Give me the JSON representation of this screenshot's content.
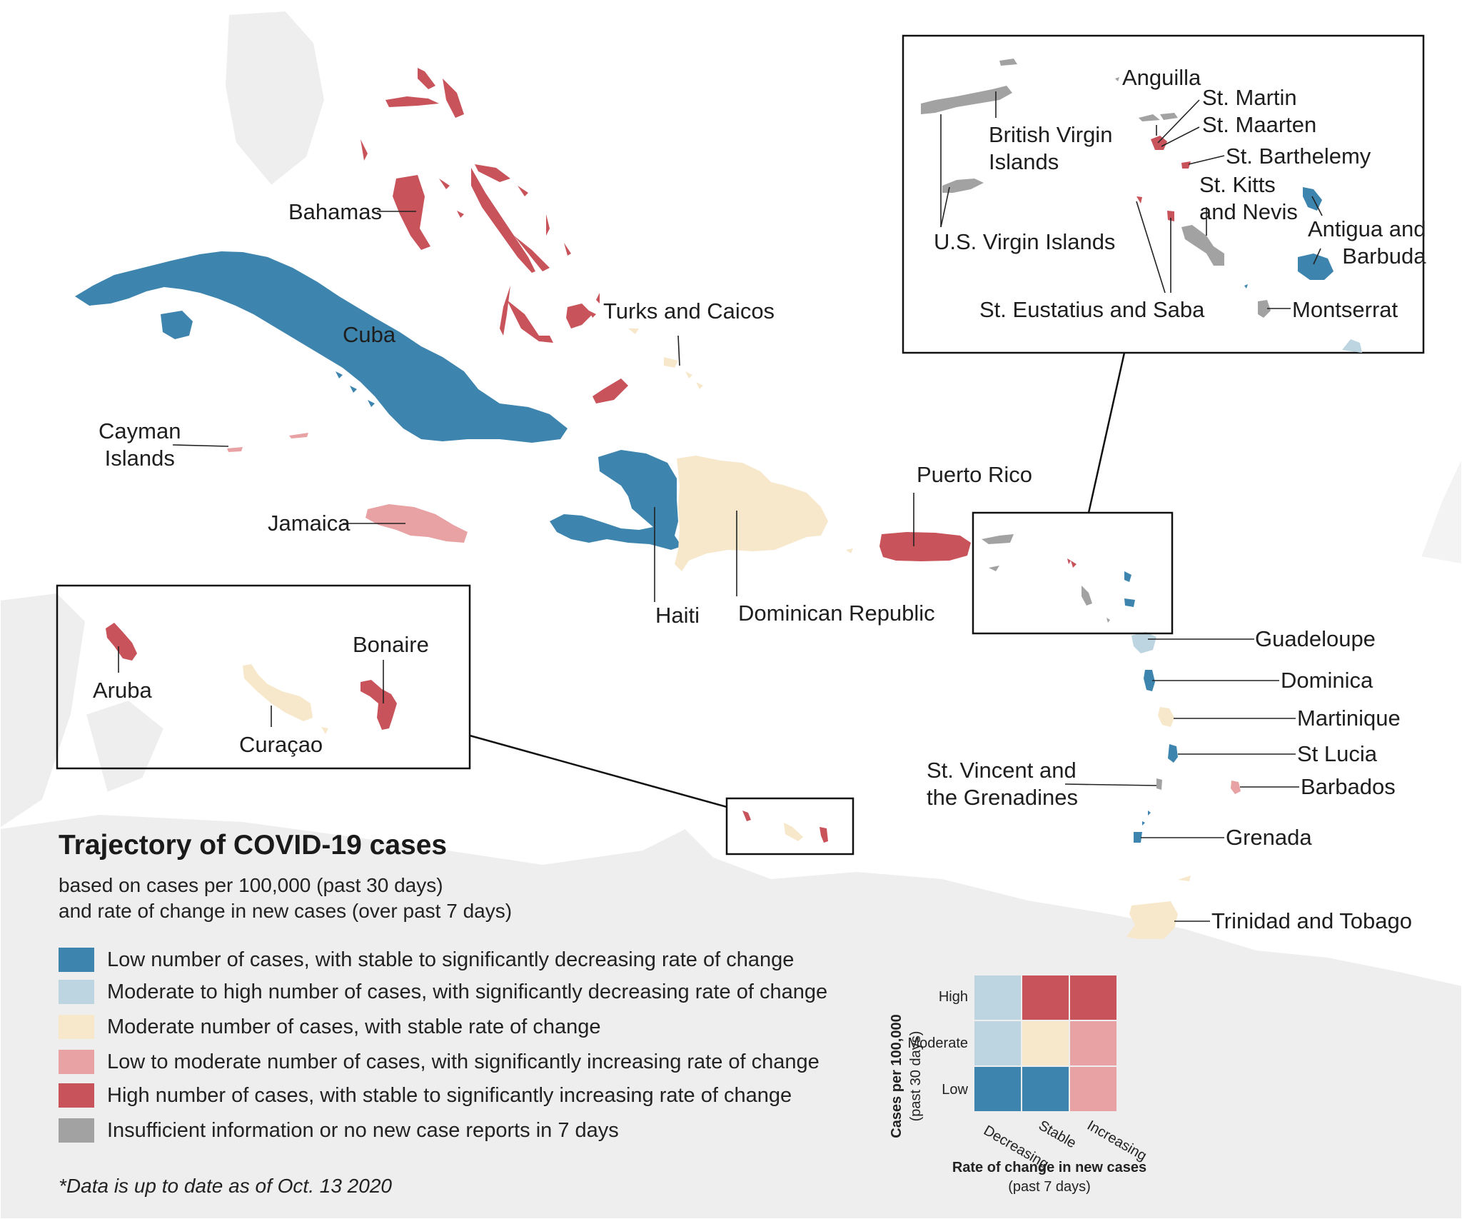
{
  "colors": {
    "low_decreasing": "#3d85ae",
    "moderate_high_decreasing": "#bcd5e0",
    "moderate_stable": "#f7e8cb",
    "low_moderate_increasing": "#e8a2a3",
    "high_increasing": "#c8535a",
    "insufficient": "#a2a2a2",
    "land_background": "#eeeeee"
  },
  "places": {
    "bahamas": "Bahamas",
    "cuba": "Cuba",
    "turks_caicos": "Turks and Caicos",
    "cayman": "Cayman\nIslands",
    "jamaica": "Jamaica",
    "haiti": "Haiti",
    "dominican_republic": "Dominican Republic",
    "puerto_rico": "Puerto Rico",
    "aruba": "Aruba",
    "curacao": "Curaçao",
    "bonaire": "Bonaire",
    "guadeloupe": "Guadeloupe",
    "dominica": "Dominica",
    "martinique": "Martinique",
    "st_lucia": "St Lucia",
    "barbados": "Barbados",
    "st_vincent": "St. Vincent and\nthe Grenadines",
    "grenada": "Grenada",
    "trinidad": "Trinidad and Tobago",
    "anguilla": "Anguilla",
    "st_martin": "St. Martin",
    "st_maarten": "St. Maarten",
    "st_barthelemy": "St. Barthelemy",
    "st_kitts": "St. Kitts\nand Nevis",
    "british_virgin": "British Virgin\nIslands",
    "us_virgin": "U.S. Virgin Islands",
    "antigua": "Antigua and\nBarbuda",
    "st_eustatius": "St. Eustatius and Saba",
    "montserrat": "Montserrat"
  },
  "legend": {
    "title": "Trajectory of COVID-19 cases",
    "subtitle_line1": "based on cases per 100,000 (past 30 days)",
    "subtitle_line2": "and rate of change in new cases (over past 7 days)",
    "items": [
      {
        "label": "Low number of cases, with stable to significantly decreasing rate of change",
        "color": "#3d85ae"
      },
      {
        "label": "Moderate to high number of cases, with significantly decreasing rate of change",
        "color": "#bcd5e0"
      },
      {
        "label": "Moderate number of cases, with stable rate of change",
        "color": "#f7e8cb"
      },
      {
        "label": "Low to moderate number of cases, with significantly increasing rate of change",
        "color": "#e8a2a3"
      },
      {
        "label": "High number of cases, with stable to significantly increasing rate of change",
        "color": "#c8535a"
      },
      {
        "label": "Insufficient information or no new case reports in 7 days",
        "color": "#a2a2a2"
      }
    ]
  },
  "matrix": {
    "y_title_line1": "Cases per 100,000",
    "y_title_line2": "(past 30 days)",
    "x_title_line1": "Rate of change in new cases",
    "x_title_line2": "(past 7 days)",
    "rows": [
      "High",
      "Moderate",
      "Low"
    ],
    "cols": [
      "Decreasing",
      "Stable",
      "Increasing"
    ],
    "cells": [
      [
        "#bcd5e0",
        "#c8535a",
        "#c8535a"
      ],
      [
        "#bcd5e0",
        "#f7e8cb",
        "#e8a2a3"
      ],
      [
        "#3d85ae",
        "#3d85ae",
        "#e8a2a3"
      ]
    ]
  },
  "footnote": "*Data is up to date as of Oct. 13 2020"
}
